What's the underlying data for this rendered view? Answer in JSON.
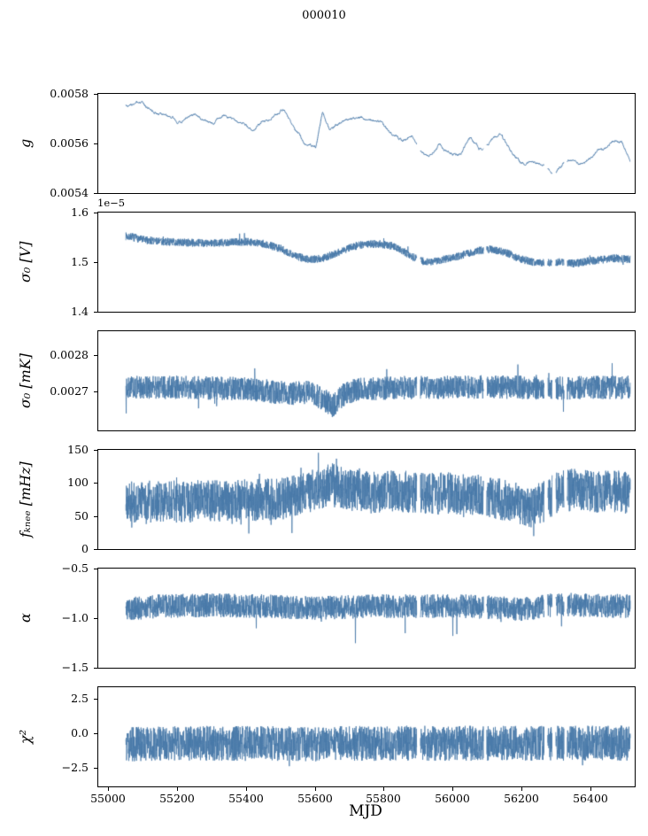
{
  "title": "000010",
  "chart_data": {
    "type": "line",
    "layout": {
      "rows": 6,
      "shared_x": true,
      "grid": false,
      "legend": "none"
    },
    "xlabel": "MJD",
    "xlim": [
      54970,
      56525
    ],
    "xticks": [
      55000,
      55200,
      55400,
      55600,
      55800,
      56000,
      56200,
      56400
    ],
    "xtick_labels": [
      "55000",
      "55200",
      "55400",
      "55600",
      "55800",
      "56000",
      "56200",
      "56400"
    ],
    "x_start": 55050,
    "x_end": 56512,
    "gaps": [
      [
        55893,
        55904
      ],
      [
        56087,
        56096
      ],
      [
        56262,
        56273
      ],
      [
        56286,
        56296
      ],
      [
        56320,
        56329
      ]
    ],
    "line_color": "#4878a8",
    "background": "#ffffff",
    "panels": [
      {
        "ylabel": "g",
        "ylim": [
          0.0054,
          0.0058
        ],
        "yticks": [
          0.0054,
          0.0056,
          0.0058
        ],
        "ytick_labels": [
          "0.0054",
          "0.0056",
          "0.0058"
        ],
        "offset_text": "",
        "series": {
          "kind": "smooth",
          "seed": 3,
          "n": 2900,
          "phi": 0.95,
          "noise": 2.5e-06,
          "anchors": [
            [
              55060,
              0.005755
            ],
            [
              55090,
              0.00576
            ],
            [
              55110,
              0.005745
            ],
            [
              55150,
              0.00572
            ],
            [
              55180,
              0.0057
            ],
            [
              55210,
              0.00568
            ],
            [
              55240,
              0.00573
            ],
            [
              55270,
              0.0057
            ],
            [
              55300,
              0.00568
            ],
            [
              55330,
              0.00571
            ],
            [
              55360,
              0.0057
            ],
            [
              55390,
              0.00568
            ],
            [
              55420,
              0.00565
            ],
            [
              55450,
              0.00569
            ],
            [
              55480,
              0.00572
            ],
            [
              55510,
              0.005735
            ],
            [
              55540,
              0.00565
            ],
            [
              55570,
              0.0056
            ],
            [
              55600,
              0.00559
            ],
            [
              55620,
              0.00572
            ],
            [
              55640,
              0.00566
            ],
            [
              55670,
              0.00568
            ],
            [
              55700,
              0.0057
            ],
            [
              55730,
              0.0057
            ],
            [
              55760,
              0.005695
            ],
            [
              55790,
              0.00569
            ],
            [
              55820,
              0.00564
            ],
            [
              55850,
              0.00561
            ],
            [
              55880,
              0.00563
            ],
            [
              55900,
              0.00556
            ],
            [
              55930,
              0.00555
            ],
            [
              55960,
              0.0056
            ],
            [
              55990,
              0.00555
            ],
            [
              56020,
              0.00556
            ],
            [
              56050,
              0.00562
            ],
            [
              56080,
              0.00557
            ],
            [
              56110,
              0.00562
            ],
            [
              56140,
              0.00563
            ],
            [
              56170,
              0.00556
            ],
            [
              56200,
              0.00552
            ],
            [
              56230,
              0.00553
            ],
            [
              56260,
              0.00551
            ],
            [
              56290,
              0.00548
            ],
            [
              56320,
              0.00552
            ],
            [
              56350,
              0.00553
            ],
            [
              56380,
              0.00552
            ],
            [
              56410,
              0.00556
            ],
            [
              56440,
              0.00558
            ],
            [
              56470,
              0.005615
            ],
            [
              56490,
              0.0056
            ],
            [
              56512,
              0.00553
            ]
          ]
        }
      },
      {
        "ylabel": "σ₀ [V]",
        "ylim": [
          1.4e-05,
          1.6e-05
        ],
        "yticks": [
          1.4e-05,
          1.5e-05,
          1.6e-05
        ],
        "ytick_labels": [
          "1.4",
          "1.5",
          "1.6"
        ],
        "offset_text": "1e−5",
        "series": {
          "kind": "band",
          "seed": 7,
          "n": 2900,
          "noise": 8e-08,
          "spike_prob": 0.006,
          "spike_amp": 1.5e-07,
          "spike_mode": "both",
          "anchors": [
            [
              55060,
              1.552e-05
            ],
            [
              55100,
              1.545e-05
            ],
            [
              55150,
              1.542e-05
            ],
            [
              55200,
              1.54e-05
            ],
            [
              55250,
              1.539e-05
            ],
            [
              55300,
              1.538e-05
            ],
            [
              55350,
              1.54e-05
            ],
            [
              55400,
              1.541e-05
            ],
            [
              55450,
              1.537e-05
            ],
            [
              55500,
              1.527e-05
            ],
            [
              55540,
              1.513e-05
            ],
            [
              55580,
              1.505e-05
            ],
            [
              55620,
              1.508e-05
            ],
            [
              55660,
              1.518e-05
            ],
            [
              55700,
              1.53e-05
            ],
            [
              55740,
              1.536e-05
            ],
            [
              55780,
              1.537e-05
            ],
            [
              55820,
              1.533e-05
            ],
            [
              55860,
              1.52e-05
            ],
            [
              55890,
              1.507e-05
            ],
            [
              55920,
              1.5e-05
            ],
            [
              55950,
              1.503e-05
            ],
            [
              55990,
              1.508e-05
            ],
            [
              56030,
              1.515e-05
            ],
            [
              56070,
              1.523e-05
            ],
            [
              56110,
              1.526e-05
            ],
            [
              56150,
              1.52e-05
            ],
            [
              56190,
              1.507e-05
            ],
            [
              56230,
              1.5e-05
            ],
            [
              56270,
              1.499e-05
            ],
            [
              56310,
              1.5e-05
            ],
            [
              56350,
              1.497e-05
            ],
            [
              56390,
              1.502e-05
            ],
            [
              56430,
              1.505e-05
            ],
            [
              56470,
              1.508e-05
            ],
            [
              56512,
              1.505e-05
            ]
          ]
        }
      },
      {
        "ylabel": "σ₀ [mK]",
        "ylim": [
          0.002595,
          0.002865
        ],
        "yticks": [
          0.0027,
          0.0028
        ],
        "ytick_labels": [
          "0.0027",
          "0.0028"
        ],
        "offset_text": "",
        "series": {
          "kind": "band",
          "seed": 13,
          "n": 2900,
          "noise": 3.2e-05,
          "spike_prob": 0.01,
          "spike_amp": 5e-05,
          "spike_mode": "both",
          "anchors": [
            [
              55060,
              0.002712
            ],
            [
              55200,
              0.002712
            ],
            [
              55300,
              0.00271
            ],
            [
              55400,
              0.002708
            ],
            [
              55480,
              0.0027
            ],
            [
              55540,
              0.002696
            ],
            [
              55580,
              0.0027
            ],
            [
              55620,
              0.002682
            ],
            [
              55650,
              0.002662
            ],
            [
              55680,
              0.002692
            ],
            [
              55720,
              0.002706
            ],
            [
              55800,
              0.00271
            ],
            [
              55900,
              0.002712
            ],
            [
              56000,
              0.002712
            ],
            [
              56100,
              0.002714
            ],
            [
              56200,
              0.002712
            ],
            [
              56300,
              0.00271
            ],
            [
              56400,
              0.002712
            ],
            [
              56512,
              0.002712
            ]
          ]
        }
      },
      {
        "ylabel": "fₖₙₑₑ [mHz]",
        "ylim": [
          0,
          150
        ],
        "yticks": [
          0,
          50,
          100,
          150
        ],
        "ytick_labels": [
          "0",
          "50",
          "100",
          "150"
        ],
        "offset_text": "",
        "series": {
          "kind": "band",
          "seed": 21,
          "n": 2900,
          "noise": 32,
          "spike_prob": 0.02,
          "spike_amp": 28,
          "spike_mode": "both",
          "anchors": [
            [
              55060,
              72
            ],
            [
              55200,
              72
            ],
            [
              55350,
              73
            ],
            [
              55500,
              76
            ],
            [
              55560,
              82
            ],
            [
              55610,
              92
            ],
            [
              55650,
              98
            ],
            [
              55700,
              90
            ],
            [
              55760,
              84
            ],
            [
              55820,
              88
            ],
            [
              55880,
              86
            ],
            [
              55950,
              84
            ],
            [
              56050,
              84
            ],
            [
              56120,
              78
            ],
            [
              56170,
              70
            ],
            [
              56220,
              64
            ],
            [
              56260,
              72
            ],
            [
              56300,
              86
            ],
            [
              56350,
              90
            ],
            [
              56420,
              86
            ],
            [
              56470,
              88
            ],
            [
              56512,
              84
            ]
          ]
        }
      },
      {
        "ylabel": "α",
        "ylim": [
          -1.5,
          -0.5
        ],
        "yticks": [
          -0.5,
          -1.0,
          -1.5
        ],
        "ytick_labels": [
          "−0.5",
          "−1.0",
          "−1.5"
        ],
        "offset_text": "",
        "series": {
          "kind": "band",
          "seed": 33,
          "n": 2900,
          "noise": 0.12,
          "spike_prob": 0.004,
          "spike_amp": 0.35,
          "spike_mode": "down",
          "anchors": [
            [
              55060,
              -0.91
            ],
            [
              55150,
              -0.88
            ],
            [
              55300,
              -0.87
            ],
            [
              55450,
              -0.88
            ],
            [
              55600,
              -0.9
            ],
            [
              55750,
              -0.88
            ],
            [
              55900,
              -0.88
            ],
            [
              56050,
              -0.88
            ],
            [
              56200,
              -0.91
            ],
            [
              56300,
              -0.86
            ],
            [
              56400,
              -0.87
            ],
            [
              56512,
              -0.88
            ]
          ]
        }
      },
      {
        "ylabel": "χ²",
        "ylim": [
          -3.8,
          3.3
        ],
        "yticks": [
          -2.5,
          0.0,
          2.5
        ],
        "ytick_labels": [
          "−2.5",
          "0.0",
          "2.5"
        ],
        "offset_text": "",
        "series": {
          "kind": "band",
          "seed": 47,
          "n": 2900,
          "noise": 1.25,
          "spike_prob": 0.006,
          "spike_amp": 0.9,
          "spike_mode": "both",
          "anchors": [
            [
              55060,
              -0.75
            ],
            [
              55300,
              -0.72
            ],
            [
              55600,
              -0.75
            ],
            [
              55900,
              -0.7
            ],
            [
              56200,
              -0.72
            ],
            [
              56512,
              -0.7
            ]
          ]
        }
      }
    ]
  }
}
